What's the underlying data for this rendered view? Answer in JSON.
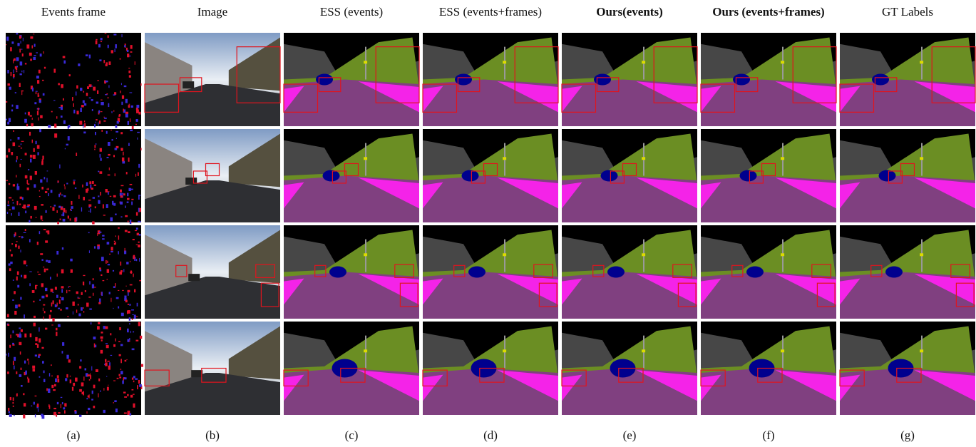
{
  "columns": [
    {
      "title": "Events frame",
      "label": "(a)"
    },
    {
      "title": "Image",
      "label": "(b)"
    },
    {
      "title": "ESS (events)",
      "label": "(c)"
    },
    {
      "title": "ESS (events+frames)",
      "label": "(d)"
    },
    {
      "title": "Ours(events)",
      "label": "(e)"
    },
    {
      "title": "Ours (events+frames)",
      "label": "(f)"
    },
    {
      "title": "GT Labels",
      "label": "(g)"
    }
  ]
}
